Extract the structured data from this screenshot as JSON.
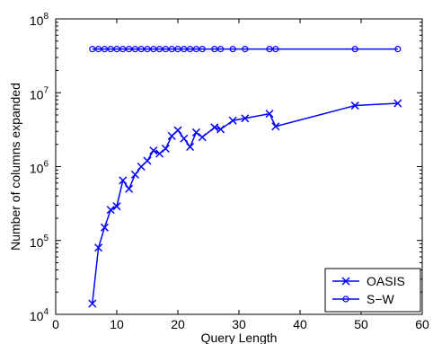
{
  "chart_data": {
    "type": "line",
    "title": "",
    "xlabel": "Query Length",
    "ylabel": "Number of columns expanded",
    "xlim": [
      0,
      60
    ],
    "ylim": [
      10000,
      100000000
    ],
    "yscale": "log",
    "grid": false,
    "legend_placement": "bottom-right",
    "x_ticks": [
      "0",
      "10",
      "20",
      "30",
      "40",
      "50",
      "60"
    ],
    "y_ticks": [
      {
        "base": "10",
        "exp": "4"
      },
      {
        "base": "10",
        "exp": "5"
      },
      {
        "base": "10",
        "exp": "6"
      },
      {
        "base": "10",
        "exp": "7"
      },
      {
        "base": "10",
        "exp": "8"
      }
    ],
    "color": "#0000ff",
    "series": [
      {
        "name": "OASIS",
        "marker": "x",
        "x": [
          6,
          7,
          8,
          9,
          10,
          11,
          12,
          13,
          14,
          15,
          16,
          17,
          18,
          19,
          20,
          21,
          22,
          23,
          24,
          26,
          27,
          29,
          31,
          35,
          36,
          49,
          56
        ],
        "y": [
          14000,
          80000,
          150000,
          260000,
          290000,
          650000,
          500000,
          780000,
          1000000,
          1200000,
          1650000,
          1500000,
          1750000,
          2600000,
          3100000,
          2400000,
          1850000,
          2900000,
          2500000,
          3400000,
          3200000,
          4200000,
          4500000,
          5200000,
          3500000,
          6700000,
          7200000
        ]
      },
      {
        "name": "S−W",
        "marker": "o",
        "x": [
          6,
          7,
          8,
          9,
          10,
          11,
          12,
          13,
          14,
          15,
          16,
          17,
          18,
          19,
          20,
          21,
          22,
          23,
          24,
          26,
          27,
          29,
          31,
          35,
          36,
          49,
          56
        ],
        "y": [
          39000000,
          39000000,
          39000000,
          39000000,
          39000000,
          39000000,
          39000000,
          39000000,
          39000000,
          39000000,
          39000000,
          39000000,
          39000000,
          39000000,
          39000000,
          39000000,
          39000000,
          39000000,
          39000000,
          39000000,
          39000000,
          39000000,
          39000000,
          39000000,
          39000000,
          39000000,
          39000000
        ]
      }
    ]
  }
}
